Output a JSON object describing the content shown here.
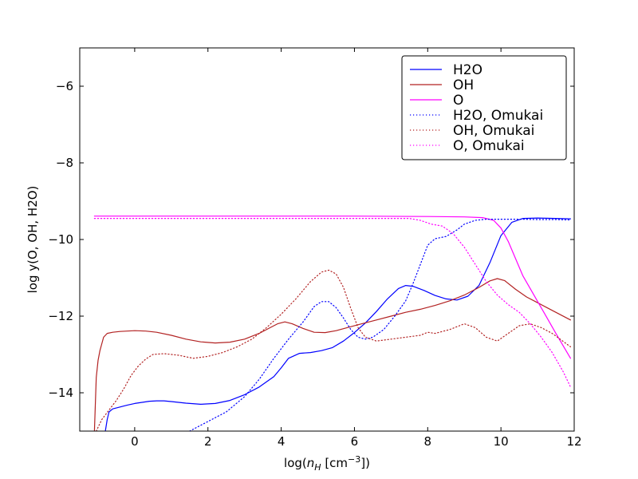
{
  "chart_data": {
    "type": "line",
    "xlabel": "log(n_H [cm^-3])",
    "ylabel": "log y(O, OH, H2O)",
    "xlim": [
      -1.5,
      12
    ],
    "ylim": [
      -15,
      -5
    ],
    "xticks": [
      0,
      2,
      4,
      6,
      8,
      10,
      12
    ],
    "yticks": [
      -14,
      -12,
      -10,
      -8,
      -6
    ],
    "xtick_labels": [
      "0",
      "2",
      "4",
      "6",
      "8",
      "10",
      "12"
    ],
    "ytick_labels": [
      "−14",
      "−12",
      "−10",
      "−8",
      "−6"
    ],
    "grid": false,
    "legend_position": "top-right",
    "series": [
      {
        "name": "H2O",
        "color": "#0000ff",
        "style": "solid",
        "x": [
          -0.8,
          -0.75,
          -0.7,
          -0.6,
          -0.4,
          -0.2,
          0.0,
          0.2,
          0.4,
          0.6,
          0.8,
          1.0,
          1.4,
          1.8,
          2.2,
          2.6,
          3.0,
          3.4,
          3.8,
          4.0,
          4.2,
          4.5,
          4.8,
          5.1,
          5.4,
          5.7,
          6.0,
          6.3,
          6.6,
          6.9,
          7.2,
          7.4,
          7.6,
          7.9,
          8.2,
          8.5,
          8.8,
          9.1,
          9.4,
          9.7,
          10.0,
          10.3,
          10.6,
          11.0,
          11.5,
          11.9
        ],
        "y": [
          -15.0,
          -14.7,
          -14.5,
          -14.42,
          -14.37,
          -14.32,
          -14.28,
          -14.25,
          -14.22,
          -14.21,
          -14.21,
          -14.23,
          -14.27,
          -14.3,
          -14.28,
          -14.2,
          -14.05,
          -13.85,
          -13.58,
          -13.35,
          -13.1,
          -12.97,
          -12.95,
          -12.9,
          -12.82,
          -12.65,
          -12.43,
          -12.18,
          -11.88,
          -11.55,
          -11.28,
          -11.2,
          -11.22,
          -11.33,
          -11.46,
          -11.55,
          -11.58,
          -11.48,
          -11.2,
          -10.6,
          -9.9,
          -9.55,
          -9.45,
          -9.44,
          -9.45,
          -9.46
        ]
      },
      {
        "name": "OH",
        "color": "#b22222",
        "style": "solid",
        "x": [
          -1.1,
          -1.05,
          -1.0,
          -0.95,
          -0.85,
          -0.75,
          -0.6,
          -0.4,
          -0.2,
          0.0,
          0.3,
          0.6,
          1.0,
          1.4,
          1.8,
          2.2,
          2.6,
          3.0,
          3.4,
          3.7,
          3.9,
          4.1,
          4.3,
          4.6,
          4.9,
          5.2,
          5.5,
          5.8,
          6.2,
          6.6,
          7.0,
          7.4,
          7.8,
          8.2,
          8.6,
          9.0,
          9.4,
          9.7,
          9.9,
          10.1,
          10.4,
          10.7,
          11.0,
          11.4,
          11.9
        ],
        "y": [
          -15.0,
          -13.6,
          -13.15,
          -12.9,
          -12.55,
          -12.45,
          -12.42,
          -12.4,
          -12.39,
          -12.38,
          -12.39,
          -12.42,
          -12.5,
          -12.6,
          -12.67,
          -12.7,
          -12.68,
          -12.6,
          -12.45,
          -12.3,
          -12.2,
          -12.15,
          -12.2,
          -12.32,
          -12.42,
          -12.43,
          -12.38,
          -12.3,
          -12.2,
          -12.1,
          -12.0,
          -11.9,
          -11.82,
          -11.72,
          -11.6,
          -11.45,
          -11.25,
          -11.08,
          -11.02,
          -11.07,
          -11.3,
          -11.5,
          -11.65,
          -11.85,
          -12.1
        ]
      },
      {
        "name": "O",
        "color": "#ff00ff",
        "style": "solid",
        "x": [
          -1.1,
          0.0,
          2.0,
          4.0,
          6.0,
          8.0,
          9.0,
          9.5,
          9.8,
          10.0,
          10.2,
          10.4,
          10.6,
          10.9,
          11.2,
          11.5,
          11.9
        ],
        "y": [
          -9.39,
          -9.39,
          -9.39,
          -9.39,
          -9.39,
          -9.4,
          -9.41,
          -9.43,
          -9.5,
          -9.7,
          -10.05,
          -10.5,
          -10.95,
          -11.45,
          -11.95,
          -12.45,
          -13.1
        ]
      },
      {
        "name": "H2O, Omukai",
        "color": "#0000ff",
        "style": "dotted",
        "x": [
          1.5,
          2.0,
          2.5,
          3.0,
          3.4,
          3.8,
          4.2,
          4.6,
          4.9,
          5.1,
          5.3,
          5.5,
          5.7,
          5.9,
          6.1,
          6.3,
          6.5,
          6.8,
          7.1,
          7.4,
          7.6,
          7.8,
          8.0,
          8.2,
          8.5,
          8.8,
          9.0,
          9.3,
          9.6,
          10.0,
          10.5,
          11.0,
          11.5,
          11.9
        ],
        "y": [
          -15.0,
          -14.75,
          -14.5,
          -14.1,
          -13.65,
          -13.1,
          -12.6,
          -12.15,
          -11.75,
          -11.62,
          -11.62,
          -11.78,
          -12.05,
          -12.35,
          -12.55,
          -12.6,
          -12.55,
          -12.35,
          -12.0,
          -11.6,
          -11.15,
          -10.65,
          -10.15,
          -9.98,
          -9.92,
          -9.75,
          -9.6,
          -9.5,
          -9.47,
          -9.47,
          -9.47,
          -9.48,
          -9.48,
          -9.49
        ]
      },
      {
        "name": "OH, Omukai",
        "color": "#b22222",
        "style": "dotted",
        "x": [
          -1.05,
          -0.9,
          -0.7,
          -0.5,
          -0.3,
          -0.1,
          0.1,
          0.3,
          0.5,
          0.8,
          1.2,
          1.6,
          2.0,
          2.4,
          2.8,
          3.2,
          3.6,
          4.0,
          4.4,
          4.8,
          5.1,
          5.3,
          5.5,
          5.7,
          5.9,
          6.1,
          6.3,
          6.6,
          7.0,
          7.4,
          7.8,
          8.0,
          8.2,
          8.6,
          9.0,
          9.3,
          9.6,
          9.9,
          10.2,
          10.5,
          10.8,
          11.1,
          11.4,
          11.9
        ],
        "y": [
          -15.0,
          -14.7,
          -14.45,
          -14.2,
          -13.9,
          -13.55,
          -13.3,
          -13.12,
          -13.0,
          -12.98,
          -13.02,
          -13.1,
          -13.05,
          -12.95,
          -12.8,
          -12.6,
          -12.3,
          -11.95,
          -11.55,
          -11.1,
          -10.85,
          -10.8,
          -10.9,
          -11.25,
          -11.8,
          -12.3,
          -12.55,
          -12.65,
          -12.6,
          -12.55,
          -12.5,
          -12.42,
          -12.45,
          -12.35,
          -12.2,
          -12.3,
          -12.55,
          -12.65,
          -12.45,
          -12.25,
          -12.2,
          -12.3,
          -12.45,
          -12.8
        ]
      },
      {
        "name": "O, Omukai",
        "color": "#ff00ff",
        "style": "dotted",
        "x": [
          -1.1,
          0.0,
          2.0,
          4.0,
          6.0,
          7.5,
          7.8,
          8.1,
          8.4,
          8.7,
          9.0,
          9.3,
          9.6,
          9.9,
          10.2,
          10.5,
          10.8,
          11.1,
          11.4,
          11.7,
          11.9
        ],
        "y": [
          -9.45,
          -9.45,
          -9.45,
          -9.45,
          -9.45,
          -9.45,
          -9.5,
          -9.6,
          -9.65,
          -9.85,
          -10.2,
          -10.65,
          -11.1,
          -11.45,
          -11.7,
          -11.9,
          -12.2,
          -12.55,
          -12.95,
          -13.45,
          -13.85
        ]
      }
    ]
  }
}
